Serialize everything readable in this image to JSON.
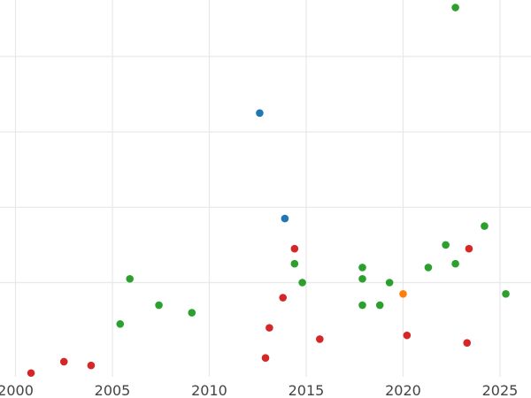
{
  "chart_data": {
    "type": "scatter",
    "title": "",
    "xlabel": "",
    "ylabel": "",
    "xlim": [
      1999.2,
      2026.6
    ],
    "ylim": [
      0,
      100
    ],
    "x_ticks": [
      2000,
      2005,
      2010,
      2015,
      2020,
      2025
    ],
    "x_tick_labels": [
      "2000",
      "2005",
      "2010",
      "2015",
      "2020",
      "2025"
    ],
    "y_gridlines": [
      25,
      45,
      65,
      85
    ],
    "y_tick_labels_visible": false,
    "grid": true,
    "legend": "none",
    "series": [
      {
        "color": "#1f77b4",
        "points": [
          {
            "x": 2012.6,
            "y": 70
          },
          {
            "x": 2013.9,
            "y": 42
          }
        ]
      },
      {
        "color": "#ff7f0e",
        "points": [
          {
            "x": 2020.0,
            "y": 22
          }
        ]
      },
      {
        "color": "#2ca02c",
        "points": [
          {
            "x": 2005.4,
            "y": 14
          },
          {
            "x": 2005.9,
            "y": 26
          },
          {
            "x": 2007.4,
            "y": 19
          },
          {
            "x": 2009.1,
            "y": 17
          },
          {
            "x": 2014.4,
            "y": 30
          },
          {
            "x": 2014.8,
            "y": 25
          },
          {
            "x": 2017.9,
            "y": 19
          },
          {
            "x": 2017.9,
            "y": 26
          },
          {
            "x": 2017.9,
            "y": 29
          },
          {
            "x": 2018.8,
            "y": 19
          },
          {
            "x": 2019.3,
            "y": 25
          },
          {
            "x": 2021.3,
            "y": 29
          },
          {
            "x": 2022.2,
            "y": 35
          },
          {
            "x": 2022.7,
            "y": 30
          },
          {
            "x": 2022.7,
            "y": 98
          },
          {
            "x": 2024.2,
            "y": 40
          },
          {
            "x": 2025.3,
            "y": 22
          }
        ]
      },
      {
        "color": "#d62728",
        "points": [
          {
            "x": 2000.8,
            "y": 1
          },
          {
            "x": 2002.5,
            "y": 4
          },
          {
            "x": 2003.9,
            "y": 3
          },
          {
            "x": 2012.9,
            "y": 5
          },
          {
            "x": 2013.1,
            "y": 13
          },
          {
            "x": 2013.8,
            "y": 21
          },
          {
            "x": 2014.4,
            "y": 34
          },
          {
            "x": 2015.7,
            "y": 10
          },
          {
            "x": 2020.2,
            "y": 11
          },
          {
            "x": 2023.3,
            "y": 9
          },
          {
            "x": 2023.4,
            "y": 34
          }
        ]
      }
    ]
  }
}
